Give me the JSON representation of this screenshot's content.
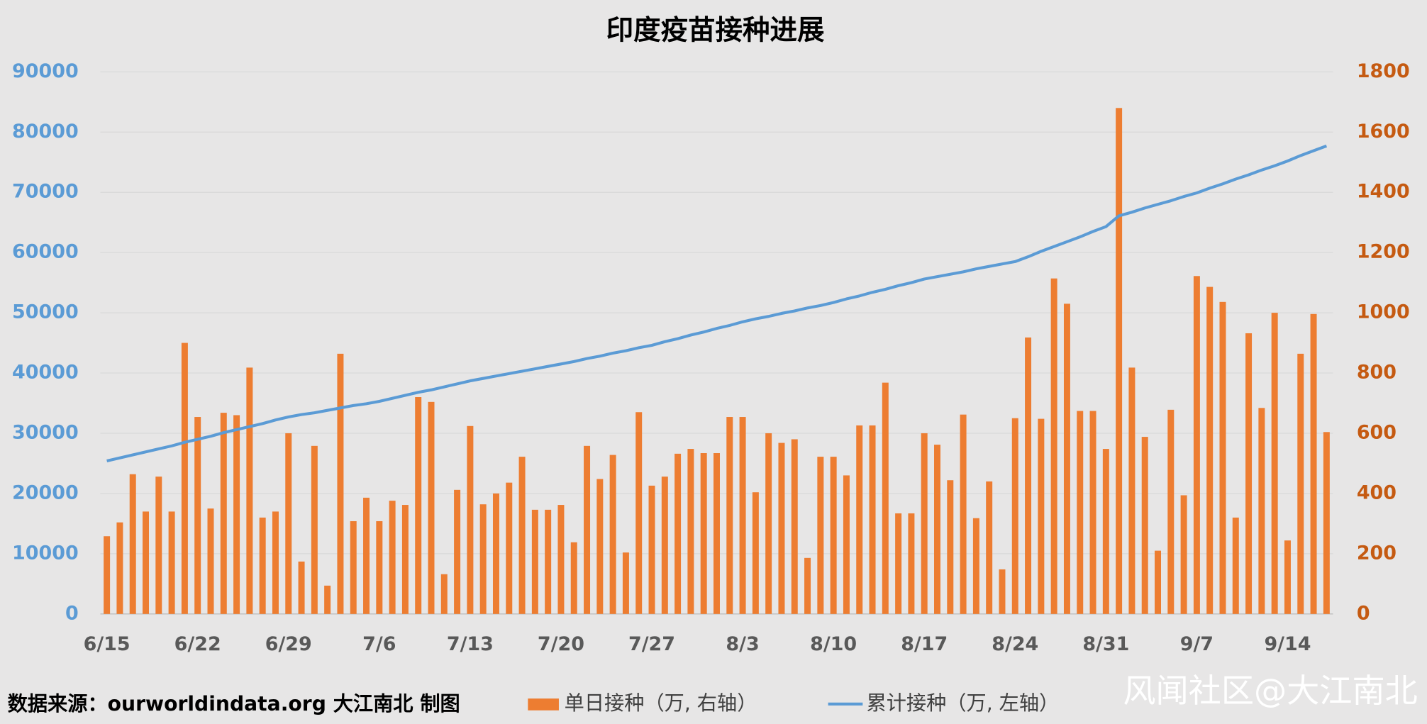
{
  "chart_data": {
    "type": "combo",
    "title": "印度疫苗接种进展",
    "source": "数据来源：ourworldindata.org 大江南北 制图",
    "watermark": "风闻社区@大江南北",
    "categories": [
      "6/15",
      null,
      null,
      null,
      null,
      null,
      null,
      "6/22",
      null,
      null,
      null,
      null,
      null,
      null,
      "6/29",
      null,
      null,
      null,
      null,
      null,
      null,
      "7/6",
      null,
      null,
      null,
      null,
      null,
      null,
      "7/13",
      null,
      null,
      null,
      null,
      null,
      null,
      "7/20",
      null,
      null,
      null,
      null,
      null,
      null,
      "7/27",
      null,
      null,
      null,
      null,
      null,
      null,
      "8/3",
      null,
      null,
      null,
      null,
      null,
      null,
      "8/10",
      null,
      null,
      null,
      null,
      null,
      null,
      "8/17",
      null,
      null,
      null,
      null,
      null,
      null,
      "8/24",
      null,
      null,
      null,
      null,
      null,
      null,
      "8/31",
      null,
      null,
      null,
      null,
      null,
      null,
      "9/7",
      null,
      null,
      null,
      null,
      null,
      null,
      "9/14",
      null,
      null,
      null
    ],
    "series": [
      {
        "name": "单日接种（万, 右轴）",
        "type": "bar",
        "axis": "y2",
        "color": "#ed7d31",
        "values": [
          258,
          304,
          464,
          340,
          456,
          340,
          900,
          654,
          350,
          668,
          660,
          818,
          320,
          340,
          600,
          174,
          558,
          94,
          864,
          308,
          386,
          308,
          376,
          362,
          720,
          704,
          132,
          412,
          624,
          364,
          400,
          436,
          522,
          346,
          346,
          362,
          238,
          558,
          448,
          528,
          204,
          670,
          426,
          456,
          532,
          548,
          534,
          534,
          654,
          654,
          404,
          600,
          568,
          580,
          186,
          522,
          522,
          460,
          626,
          626,
          768,
          334,
          334,
          600,
          562,
          444,
          662,
          318,
          440,
          148,
          650,
          918,
          648,
          1114,
          1030,
          674,
          674,
          548,
          1680,
          818,
          588,
          210,
          678,
          394,
          1122,
          1086,
          1036,
          320,
          932,
          684,
          1000,
          244,
          864,
          996,
          604
        ]
      },
      {
        "name": "累计接种（万, 左轴）",
        "type": "line",
        "axis": "y",
        "color": "#5b9bd5",
        "values": [
          25400,
          25900,
          26400,
          26900,
          27400,
          27900,
          28500,
          29000,
          29500,
          30100,
          30600,
          31100,
          31600,
          32200,
          32700,
          33100,
          33400,
          33800,
          34200,
          34600,
          34900,
          35300,
          35800,
          36300,
          36800,
          37200,
          37700,
          38200,
          38700,
          39100,
          39500,
          39900,
          40300,
          40700,
          41100,
          41500,
          41900,
          42400,
          42800,
          43300,
          43700,
          44200,
          44600,
          45200,
          45700,
          46300,
          46800,
          47400,
          47900,
          48500,
          49000,
          49400,
          49900,
          50300,
          50800,
          51200,
          51700,
          52300,
          52800,
          53400,
          53900,
          54500,
          55000,
          55600,
          56000,
          56400,
          56800,
          57300,
          57700,
          58100,
          58500,
          59300,
          60200,
          61000,
          61800,
          62600,
          63500,
          64300,
          66100,
          66700,
          67400,
          68000,
          68600,
          69300,
          69900,
          70700,
          71400,
          72200,
          72900,
          73700,
          74400,
          75200,
          76100,
          76900,
          77700
        ]
      }
    ],
    "ylim": [
      0,
      90000
    ],
    "yticks": [
      0,
      10000,
      20000,
      30000,
      40000,
      50000,
      60000,
      70000,
      80000,
      90000
    ],
    "y2lim": [
      0,
      1800
    ],
    "y2ticks": [
      0,
      200,
      400,
      600,
      800,
      1000,
      1200,
      1400,
      1600,
      1800
    ],
    "grid": true,
    "legend": "bottom"
  }
}
